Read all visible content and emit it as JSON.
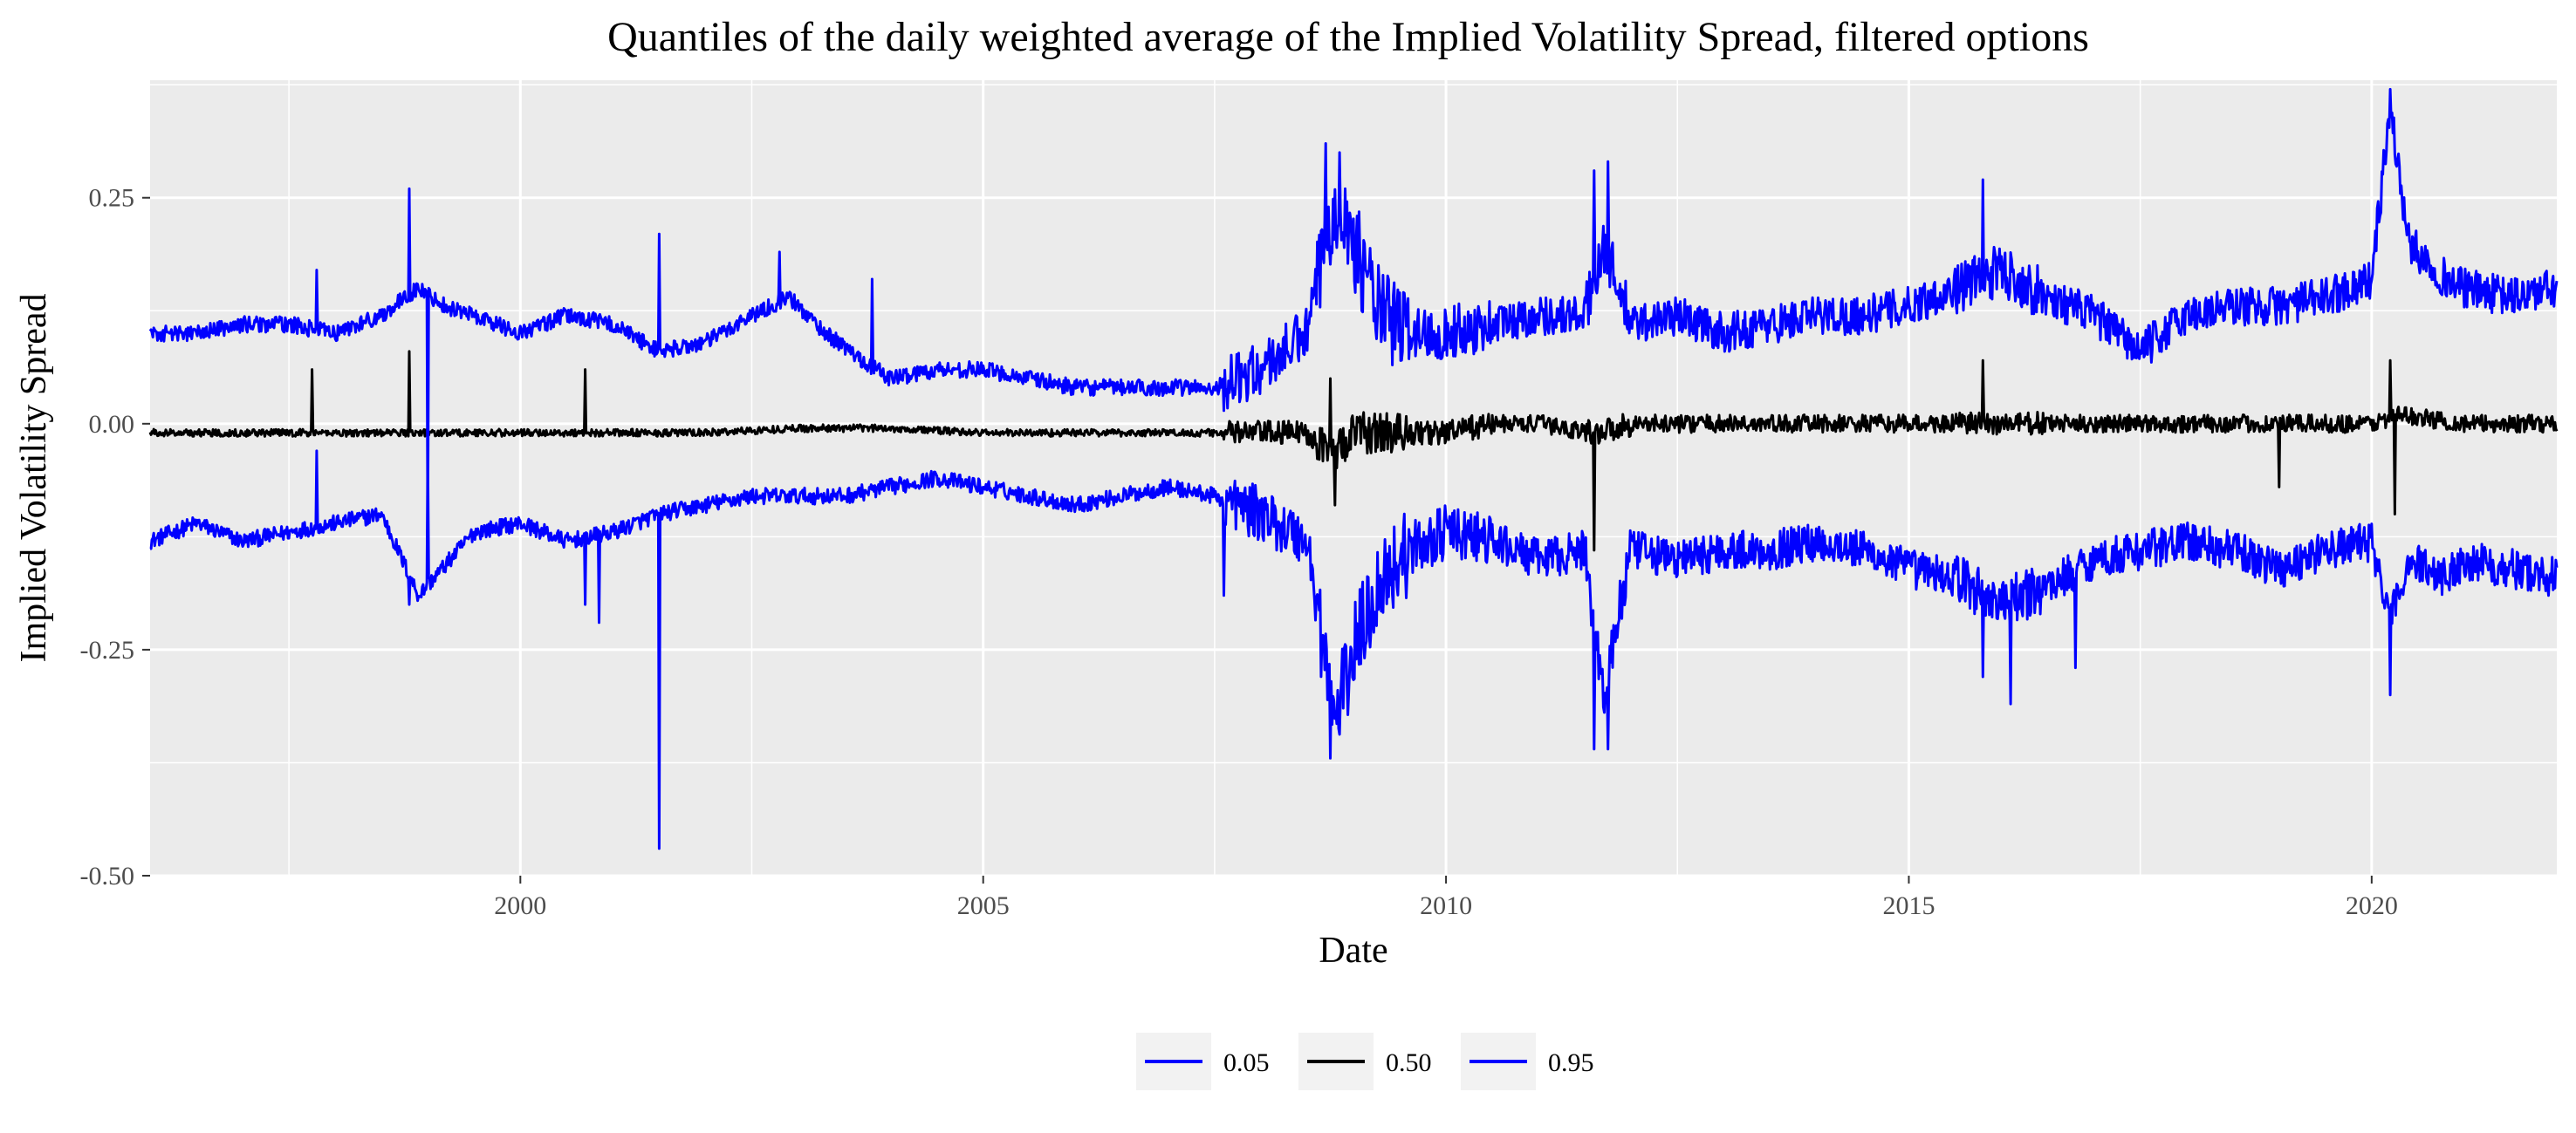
{
  "chart_data": {
    "type": "line",
    "title": "Quantiles of the daily weighted average of the Implied Volatility Spread, filtered options",
    "xlabel": "Date",
    "ylabel": "Implied Volatility Spread",
    "xlim": [
      1996.0,
      2022.0
    ],
    "ylim": [
      -0.5,
      0.38
    ],
    "x_ticks": [
      2000,
      2005,
      2010,
      2015,
      2020
    ],
    "x_tick_labels": [
      "2000",
      "2005",
      "2010",
      "2015",
      "2020"
    ],
    "y_ticks": [
      -0.5,
      -0.25,
      0.0,
      0.25
    ],
    "y_tick_labels": [
      "-0.50",
      "-0.25",
      "0.00",
      "0.25"
    ],
    "grid": true,
    "legend_position": "bottom",
    "x_unit": "year",
    "series": [
      {
        "name": "0.05",
        "color": "#0000ff",
        "x": [
          1996.0,
          1996.5,
          1997.0,
          1997.5,
          1998.0,
          1998.5,
          1998.9,
          1999.5,
          2000.0,
          2000.5,
          2001.0,
          2001.5,
          2002.0,
          2002.5,
          2003.0,
          2003.5,
          2004.0,
          2004.5,
          2005.0,
          2005.5,
          2006.0,
          2006.5,
          2007.0,
          2007.5,
          2008.0,
          2008.5,
          2008.8,
          2009.0,
          2009.3,
          2009.6,
          2010.0,
          2010.5,
          2011.0,
          2011.5,
          2011.7,
          2012.0,
          2012.5,
          2013.0,
          2013.5,
          2014.0,
          2014.5,
          2015.0,
          2015.5,
          2016.0,
          2016.5,
          2017.0,
          2017.5,
          2018.0,
          2018.5,
          2019.0,
          2019.5,
          2020.0,
          2020.2,
          2020.4,
          2020.8,
          2021.0,
          2021.5,
          2022.0
        ],
        "y": [
          -0.13,
          -0.11,
          -0.13,
          -0.12,
          -0.11,
          -0.1,
          -0.19,
          -0.12,
          -0.11,
          -0.13,
          -0.12,
          -0.1,
          -0.09,
          -0.08,
          -0.08,
          -0.08,
          -0.07,
          -0.06,
          -0.07,
          -0.08,
          -0.09,
          -0.08,
          -0.07,
          -0.08,
          -0.1,
          -0.13,
          -0.33,
          -0.25,
          -0.17,
          -0.14,
          -0.12,
          -0.13,
          -0.15,
          -0.14,
          -0.3,
          -0.14,
          -0.15,
          -0.14,
          -0.14,
          -0.13,
          -0.14,
          -0.16,
          -0.17,
          -0.2,
          -0.18,
          -0.15,
          -0.14,
          -0.13,
          -0.14,
          -0.16,
          -0.14,
          -0.13,
          -0.22,
          -0.15,
          -0.17,
          -0.15,
          -0.16,
          -0.17
        ],
        "spikes": [
          [
            1997.8,
            -0.03
          ],
          [
            1998.8,
            -0.2
          ],
          [
            1999.0,
            -0.03
          ],
          [
            2000.7,
            -0.2
          ],
          [
            2000.85,
            -0.22
          ],
          [
            2001.5,
            -0.47
          ],
          [
            2007.6,
            -0.19
          ],
          [
            2008.75,
            -0.37
          ],
          [
            2011.6,
            -0.36
          ],
          [
            2011.75,
            -0.36
          ],
          [
            2015.8,
            -0.28
          ],
          [
            2016.1,
            -0.31
          ],
          [
            2016.8,
            -0.27
          ],
          [
            2020.2,
            -0.3
          ]
        ]
      },
      {
        "name": "0.50",
        "color": "#000000",
        "x": [
          1996.0,
          1997.0,
          1998.0,
          1999.0,
          2000.0,
          2001.0,
          2002.0,
          2003.0,
          2004.0,
          2005.0,
          2006.0,
          2007.0,
          2007.7,
          2008.0,
          2008.5,
          2008.8,
          2009.0,
          2009.5,
          2010.0,
          2010.5,
          2011.0,
          2011.6,
          2012.0,
          2013.0,
          2014.0,
          2015.0,
          2016.0,
          2017.0,
          2018.0,
          2019.0,
          2020.0,
          2020.3,
          2021.0,
          2022.0
        ],
        "y": [
          -0.01,
          -0.01,
          -0.01,
          -0.01,
          -0.01,
          -0.01,
          -0.01,
          -0.005,
          -0.005,
          -0.01,
          -0.01,
          -0.01,
          -0.01,
          -0.01,
          -0.01,
          -0.03,
          -0.01,
          -0.01,
          -0.01,
          0.0,
          0.0,
          -0.01,
          0.0,
          0.0,
          0.0,
          0.0,
          0.0,
          0.0,
          0.0,
          0.0,
          0.0,
          0.01,
          0.0,
          0.0
        ],
        "spikes": [
          [
            1997.75,
            0.06
          ],
          [
            1998.8,
            0.08
          ],
          [
            2000.7,
            0.06
          ],
          [
            2008.75,
            0.05
          ],
          [
            2008.8,
            -0.09
          ],
          [
            2011.6,
            -0.14
          ],
          [
            2015.8,
            0.07
          ],
          [
            2019.0,
            -0.07
          ],
          [
            2020.2,
            0.07
          ],
          [
            2020.25,
            -0.1
          ]
        ]
      },
      {
        "name": "0.95",
        "color": "#0000ff",
        "x": [
          1996.0,
          1996.5,
          1997.0,
          1997.5,
          1998.0,
          1998.5,
          1998.9,
          1999.2,
          1999.5,
          2000.0,
          2000.5,
          2001.0,
          2001.5,
          2002.0,
          2002.5,
          2002.9,
          2003.3,
          2003.7,
          2004.0,
          2004.5,
          2005.0,
          2005.5,
          2006.0,
          2006.5,
          2007.0,
          2007.5,
          2008.0,
          2008.5,
          2008.8,
          2009.0,
          2009.3,
          2009.6,
          2010.0,
          2010.5,
          2011.0,
          2011.5,
          2011.7,
          2012.0,
          2012.5,
          2013.0,
          2013.5,
          2014.0,
          2014.5,
          2015.0,
          2015.5,
          2016.0,
          2016.5,
          2017.0,
          2017.5,
          2018.0,
          2018.5,
          2019.0,
          2019.5,
          2020.0,
          2020.2,
          2020.4,
          2020.8,
          2021.0,
          2021.5,
          2022.0
        ],
        "y": [
          0.1,
          0.1,
          0.11,
          0.11,
          0.1,
          0.12,
          0.15,
          0.13,
          0.12,
          0.1,
          0.12,
          0.11,
          0.08,
          0.09,
          0.12,
          0.14,
          0.1,
          0.07,
          0.05,
          0.06,
          0.06,
          0.05,
          0.04,
          0.04,
          0.04,
          0.04,
          0.06,
          0.1,
          0.25,
          0.2,
          0.12,
          0.1,
          0.1,
          0.11,
          0.12,
          0.12,
          0.2,
          0.11,
          0.12,
          0.1,
          0.11,
          0.12,
          0.12,
          0.13,
          0.15,
          0.17,
          0.14,
          0.12,
          0.08,
          0.12,
          0.13,
          0.13,
          0.14,
          0.16,
          0.35,
          0.2,
          0.16,
          0.15,
          0.14,
          0.15
        ],
        "spikes": [
          [
            1997.8,
            0.17
          ],
          [
            1998.8,
            0.26
          ],
          [
            1999.0,
            -0.13
          ],
          [
            2001.5,
            0.21
          ],
          [
            2002.8,
            0.19
          ],
          [
            2003.8,
            0.16
          ],
          [
            2008.7,
            0.31
          ],
          [
            2008.85,
            0.3
          ],
          [
            2011.6,
            0.28
          ],
          [
            2011.75,
            0.29
          ],
          [
            2015.8,
            0.27
          ],
          [
            2020.2,
            0.37
          ]
        ]
      }
    ]
  }
}
